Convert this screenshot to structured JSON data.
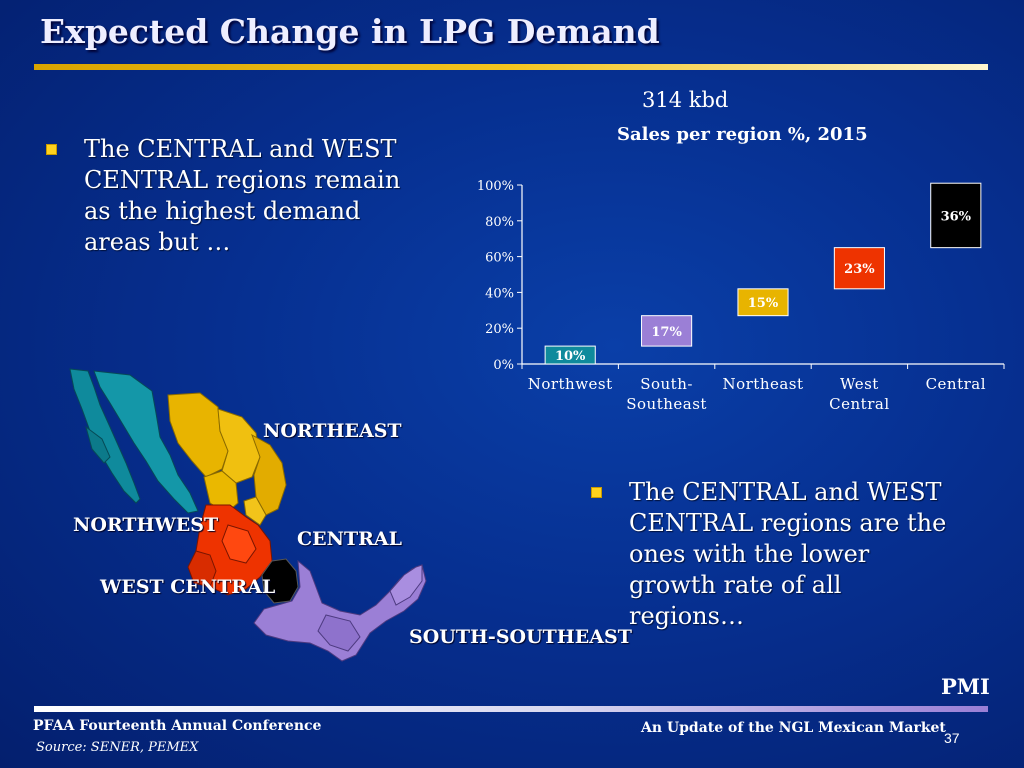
{
  "slide": {
    "title": "Expected Change in LPG Demand",
    "bullet_left": "The CENTRAL  and WEST CENTRAL regions remain as the highest demand areas but …",
    "bullet_right": "The CENTRAL  and WEST CENTRAL regions are the ones with the lower growth rate of all regions…",
    "kbd_label": "314 kbd",
    "map_labels": {
      "northeast": "NORTHEAST",
      "northwest": "NORTHWEST",
      "central": "CENTRAL",
      "west_central": "WEST CENTRAL",
      "south_southeast": "SOUTH-SOUTHEAST"
    },
    "pmi": "PMI",
    "footer_conf": "PFAA Fourteenth Annual Conference",
    "footer_source": "Source: SENER, PEMEX",
    "footer_update": "An Update of the NGL Mexican Market",
    "page_number": "37"
  },
  "colors": {
    "northwest": "#0f8a9c",
    "south_southeast": "#9b7fd6",
    "northeast": "#e8b400",
    "west_central": "#ee3300",
    "central": "#000000"
  },
  "chart_data": {
    "type": "bar",
    "title": "Sales per region %, 2015",
    "categories": [
      "Northwest",
      "South-Southeast",
      "Northeast",
      "West Central",
      "Central"
    ],
    "category_lines": [
      [
        "Northwest"
      ],
      [
        "South-",
        "Southeast"
      ],
      [
        "Northeast"
      ],
      [
        "West",
        "Central"
      ],
      [
        "Central"
      ]
    ],
    "values": [
      10,
      17,
      15,
      23,
      36
    ],
    "labels": [
      "10%",
      "17%",
      "15%",
      "23%",
      "36%"
    ],
    "yticks": [
      "0%",
      "20%",
      "40%",
      "60%",
      "80%",
      "100%"
    ],
    "ylim": [
      0,
      100
    ],
    "note": "floating boxes: each box spans from the running total to running total + value",
    "colors": [
      "#0f8a9c",
      "#9b7fd6",
      "#e8b400",
      "#ee3300",
      "#000000"
    ]
  }
}
